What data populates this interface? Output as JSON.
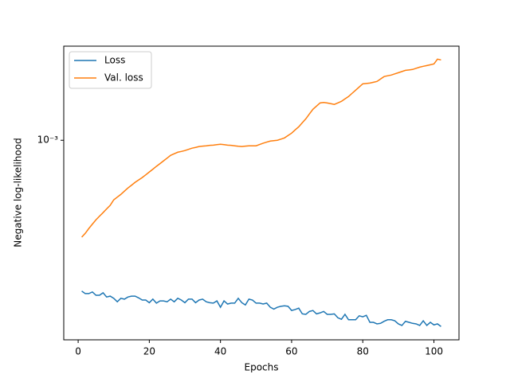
{
  "chart_data": {
    "type": "line",
    "x_label": "Epochs",
    "y_label": "Negative log-likelihood",
    "log_y": true,
    "legend": "upper left",
    "x": [
      1,
      2,
      3,
      4,
      5,
      6,
      7,
      8,
      9,
      10,
      11,
      12,
      13,
      14,
      15,
      16,
      17,
      18,
      19,
      20,
      21,
      22,
      23,
      24,
      25,
      26,
      27,
      28,
      29,
      30,
      31,
      32,
      33,
      34,
      35,
      36,
      37,
      38,
      39,
      40,
      41,
      42,
      43,
      44,
      45,
      46,
      47,
      48,
      49,
      50,
      51,
      52,
      53,
      54,
      55,
      56,
      57,
      58,
      59,
      60,
      61,
      62,
      63,
      64,
      65,
      66,
      67,
      68,
      69,
      70,
      71,
      72,
      73,
      74,
      75,
      76,
      77,
      78,
      79,
      80,
      81,
      82,
      83,
      84,
      85,
      86,
      87,
      88,
      89,
      90,
      91,
      92,
      93,
      94,
      95,
      96,
      97,
      98,
      99,
      100,
      101,
      102
    ],
    "series": [
      {
        "name": "Loss",
        "color": "#1f77b4",
        "values": [
          0.00034,
          0.000334,
          0.000334,
          0.000338,
          0.00033,
          0.00033,
          0.000336,
          0.000326,
          0.000328,
          0.000323,
          0.000315,
          0.000323,
          0.000321,
          0.000326,
          0.000328,
          0.000328,
          0.000324,
          0.000319,
          0.000319,
          0.000313,
          0.000321,
          0.000312,
          0.000317,
          0.000317,
          0.000315,
          0.000321,
          0.000315,
          0.000323,
          0.000319,
          0.000313,
          0.000321,
          0.000321,
          0.000313,
          0.000319,
          0.000321,
          0.000315,
          0.000313,
          0.000312,
          0.000317,
          0.000303,
          0.000317,
          0.00031,
          0.000312,
          0.000312,
          0.000323,
          0.000313,
          0.000308,
          0.000321,
          0.000319,
          0.000312,
          0.000312,
          0.00031,
          0.000312,
          0.000303,
          0.000299,
          0.000303,
          0.000305,
          0.000306,
          0.000305,
          0.000296,
          0.000298,
          0.000301,
          0.000289,
          0.000288,
          0.000294,
          0.000296,
          0.000289,
          0.000291,
          0.000294,
          0.000288,
          0.000288,
          0.000289,
          0.000281,
          0.000278,
          0.000288,
          0.000277,
          0.000277,
          0.000277,
          0.000285,
          0.000283,
          0.000286,
          0.000272,
          0.000272,
          0.000269,
          0.00027,
          0.000274,
          0.000277,
          0.000277,
          0.000275,
          0.000269,
          0.000266,
          0.000274,
          0.000272,
          0.00027,
          0.000269,
          0.000266,
          0.000275,
          0.000266,
          0.000272,
          0.000267,
          0.000269,
          0.000264
        ]
      },
      {
        "name": "Val. loss",
        "color": "#ff7f0e",
        "values": [
          0.0005,
          0.000514,
          0.000532,
          0.000549,
          0.000566,
          0.000581,
          0.000596,
          0.000612,
          0.000628,
          0.000653,
          0.000666,
          0.000679,
          0.000695,
          0.000711,
          0.000725,
          0.00074,
          0.000753,
          0.000766,
          0.000781,
          0.000797,
          0.000813,
          0.00083,
          0.000846,
          0.000863,
          0.00088,
          0.000898,
          0.000908,
          0.000918,
          0.000923,
          0.000929,
          0.000937,
          0.000945,
          0.00095,
          0.000956,
          0.000959,
          0.000961,
          0.000964,
          0.000966,
          0.000969,
          0.000972,
          0.000969,
          0.000966,
          0.000964,
          0.000961,
          0.000958,
          0.000956,
          0.000959,
          0.000961,
          0.000961,
          0.000961,
          0.00097,
          0.000979,
          0.000987,
          0.000994,
          0.000997,
          0.001,
          0.001008,
          0.001017,
          0.001035,
          0.001052,
          0.001077,
          0.001101,
          0.001133,
          0.001166,
          0.001207,
          0.001248,
          0.001277,
          0.001306,
          0.00131,
          0.001306,
          0.001299,
          0.001292,
          0.001306,
          0.001321,
          0.001344,
          0.001367,
          0.001399,
          0.001431,
          0.001464,
          0.001497,
          0.001501,
          0.001505,
          0.001514,
          0.001523,
          0.00155,
          0.001577,
          0.001586,
          0.001594,
          0.001608,
          0.001621,
          0.001635,
          0.001649,
          0.001654,
          0.001659,
          0.001673,
          0.001687,
          0.001697,
          0.001706,
          0.001716,
          0.001726,
          0.001786,
          0.001776
        ]
      }
    ],
    "xlim": [
      -4.05,
      107.05
    ],
    "xticks": [
      0,
      20,
      40,
      60,
      80,
      100
    ],
    "ylim": [
      0.00024,
      0.00196
    ],
    "yticks": [
      {
        "value": 0.001,
        "label": "10⁻³"
      }
    ]
  }
}
